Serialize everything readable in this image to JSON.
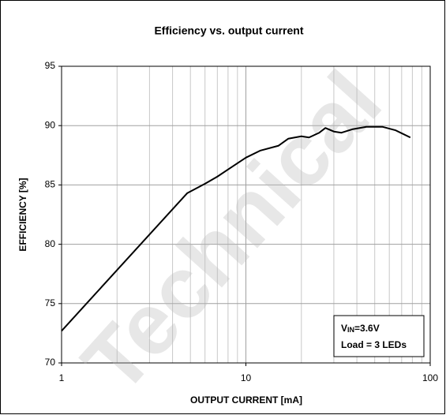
{
  "chart_data": {
    "type": "line",
    "title": "Efficiency vs. output current",
    "xlabel": "OUTPUT CURRENT [mA]",
    "ylabel": "EFFICIENCY [%]",
    "x_scale": "log",
    "grid": true,
    "xlim": [
      1,
      100
    ],
    "xticks": [
      1,
      10,
      100
    ],
    "ylim": [
      70,
      95
    ],
    "yticks": [
      70,
      75,
      80,
      85,
      90,
      95
    ],
    "annotation": {
      "v": "V",
      "sub": "IN",
      "rest": "=3.6V",
      "line2": "Load = 3 LEDs"
    },
    "watermark": "Technical",
    "series": [
      {
        "name": "Efficiency",
        "color": "#000000",
        "x": [
          1,
          4.8,
          6,
          7,
          8,
          10,
          12,
          15,
          17,
          20,
          22,
          25,
          27,
          30,
          33,
          38,
          45,
          55,
          65,
          78
        ],
        "values": [
          72.7,
          84.3,
          85.1,
          85.7,
          86.3,
          87.3,
          87.9,
          88.3,
          88.9,
          89.1,
          89.0,
          89.4,
          89.8,
          89.5,
          89.4,
          89.7,
          89.9,
          89.9,
          89.6,
          89.0
        ]
      }
    ]
  }
}
